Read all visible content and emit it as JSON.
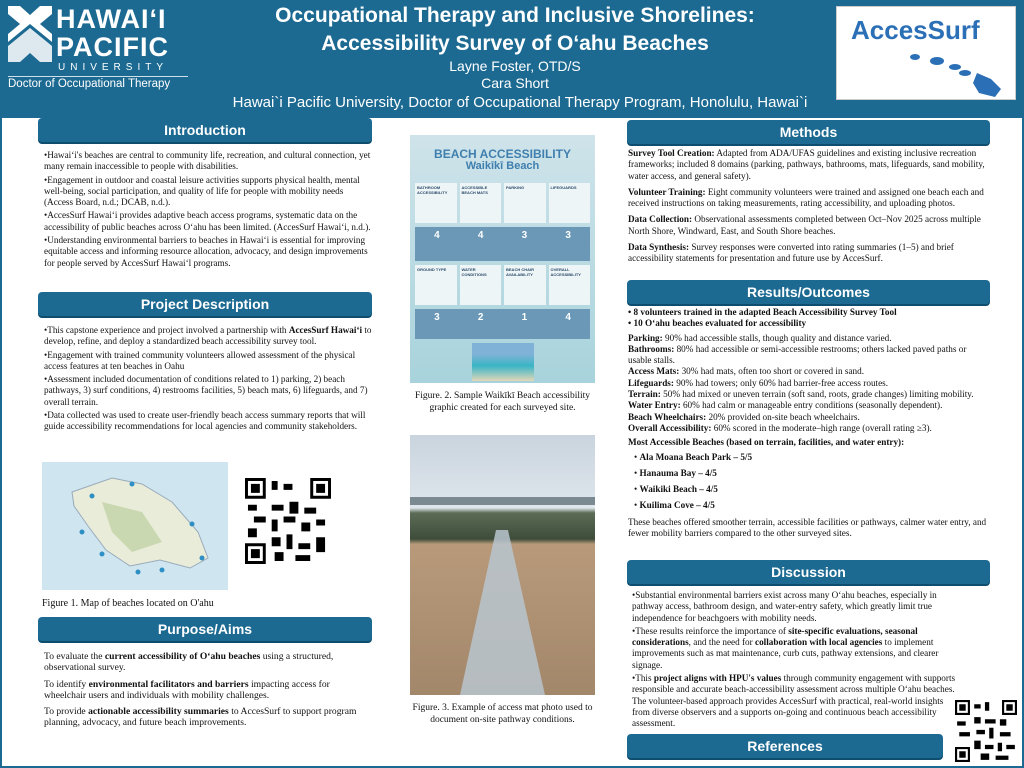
{
  "header": {
    "university": {
      "line1": "HAWAIʻI",
      "line2": "PACIFIC",
      "line3": "UNIVERSITY",
      "program": "Doctor of Occupational Therapy"
    },
    "title_line1": "Occupational Therapy and Inclusive Shorelines:",
    "title_line2": "Accessibility Survey of Oʻahu Beaches",
    "author1": "Layne Foster, OTD/S",
    "author2": "Cara Short",
    "affiliation": "Hawai`i Pacific University, Doctor of Occupational Therapy Program, Honolulu, Hawai`i",
    "partner_logo": "AccesSurf"
  },
  "colors": {
    "primary": "#1c6a92",
    "accent": "#2b6fb6"
  },
  "introduction": {
    "heading": "Introduction",
    "bullets": [
      "•Hawaiʻi's beaches are central to community life, recreation, and cultural connection, yet many remain inaccessible to people with disabilities.",
      "•Engagement in outdoor and coastal leisure activities supports physical health, mental well-being, social participation, and quality of life for people with mobility needs (Access Board, n.d.; DCAB, n.d.).",
      "•AccesSurf Hawaiʻi provides adaptive beach access programs, systematic data on the accessibility of public beaches across Oʻahu has been limited. (AccesSurf Hawaiʻi, n.d.).",
      "•Understanding environmental barriers to beaches in Hawaiʻi is essential for improving equitable access and informing resource allocation, advocacy, and design improvements for people served by AccesSurf Hawaiʻl programs."
    ]
  },
  "project": {
    "heading": "Project Description",
    "b1_pre": "•This capstone experience and project involved a partnership with ",
    "b1_bold": "AccesSurf Hawaiʻi",
    "b1_post": " to develop, refine, and deploy a standardized beach accessibility survey tool.",
    "b2": "•Engagement with trained community volunteers allowed assessment of the physical access features at ten beaches in Oahu",
    "b3": "•Assessment included documentation of conditions related to 1) parking, 2) beach pathways, 3) surf conditions, 4) restrooms facilities, 5) beach mats, 6) lifeguards, and 7) overall terrain.",
    "b4": "•Data collected was used to create user-friendly beach access summary reports that will guide accessibility recommendations for local agencies and community stakeholders.",
    "figure1_caption": "Figure 1. Map of beaches located on O'ahu"
  },
  "aims": {
    "heading": "Purpose/Aims",
    "items": [
      {
        "pre": "To evaluate the ",
        "bold": "current accessibility of Oʻahu beaches",
        "post": " using a structured, observational survey."
      },
      {
        "pre": "To identify ",
        "bold": "environmental facilitators and barriers",
        "post": " impacting access for wheelchair users and individuals with mobility challenges."
      },
      {
        "pre": "To provide ",
        "bold": "actionable accessibility summaries",
        "post": " to AccesSurf to support program planning, advocacy, and future beach improvements."
      }
    ]
  },
  "figures": {
    "infographic": {
      "title1": "BEACH ACCESSIBILITY",
      "title2": "Waikīkī Beach",
      "scores": [
        "4",
        "4",
        "3",
        "3",
        "3",
        "2",
        "1",
        "4"
      ],
      "labels": [
        "BATHROOM ACCESSIBILITY",
        "ACCESSIBLE BEACH MATS",
        "PARKING",
        "LIFEGUARDS",
        "GROUND TYPE",
        "WATER CONDITIONS",
        "BEACH CHAIR AVAILABILITY",
        "OVERALL ACCESSIBILITY"
      ]
    },
    "figure2_caption": "Figure. 2. Sample Waikīkī Beach accessibility graphic created for each surveyed site.",
    "figure3_caption": "Figure. 3. Example of access mat photo used to document on-site pathway conditions."
  },
  "methods": {
    "heading": "Methods",
    "items": [
      {
        "label": "Survey Tool Creation:",
        "text": " Adapted from ADA/UFAS guidelines and existing inclusive recreation frameworks; included 8 domains (parking, pathways, bathrooms, mats, lifeguards, sand mobility, water access, and general safety)."
      },
      {
        "label": "Volunteer Training:",
        "text": " Eight community volunteers were trained and assigned one beach each and received instructions on taking measurements, rating accessibility, and uploading photos."
      },
      {
        "label": "Data Collection:",
        "text": " Observational assessments completed between Oct–Nov 2025 across multiple North Shore, Windward, East, and South Shore beaches."
      },
      {
        "label": "Data Synthesis:",
        "text": " Survey responses were converted into rating summaries (1–5) and brief accessibility statements for presentation and future use by AccesSurf."
      }
    ]
  },
  "results": {
    "heading": "Results/Outcomes",
    "highlights": [
      "• 8 volunteers trained in the adapted Beach Accessibility Survey Tool",
      "• 10 Oʻahu beaches evaluated for accessibility"
    ],
    "items": [
      {
        "label": "Parking:",
        "text": " 90% had accessible stalls, though quality and distance varied."
      },
      {
        "label": "Bathrooms:",
        "text": " 80% had accessible or semi-accessible restrooms; others lacked paved paths or usable stalls."
      },
      {
        "label": "Access Mats:",
        "text": " 30% had mats, often too short or covered in sand."
      },
      {
        "label": "Lifeguards:",
        "text": " 90% had towers; only 60% had barrier-free access routes."
      },
      {
        "label": "Terrain:",
        "text": " 50% had mixed or uneven terrain (soft sand, roots, grade changes) limiting mobility."
      },
      {
        "label": "Water Entry:",
        "text": " 60% had calm or manageable entry conditions (seasonally dependent)."
      },
      {
        "label": "Beach Wheelchairs:",
        "text": " 20% provided on-site beach wheelchairs."
      },
      {
        "label": "Overall Accessibility:",
        "text": " 60% scored in the moderate–high range (overall rating ≥3)."
      }
    ],
    "top_heading": "Most Accessible Beaches (based on terrain, facilities, and water entry):",
    "top_beaches": [
      "Ala Moana Beach Park – 5/5",
      "Hanauma Bay – 4/5",
      "Waikiki Beach – 4/5",
      "Kuilima Cove – 4/5"
    ],
    "summary": "These beaches offered smoother terrain, accessible facilities or pathways, calmer water entry, and fewer mobility barriers compared to the other surveyed sites."
  },
  "discussion": {
    "heading": "Discussion",
    "b1": "•Substantial environmental barriers exist across many Oʻahu beaches, especially in pathway access, bathroom design, and water-entry safety, which greatly limit true independence for beachgoers with mobility needs.",
    "b2_a": "•These results reinforce the importance of ",
    "b2_b": "site-specific evaluations, seasonal considerations",
    "b2_c": ", and the need for ",
    "b2_d": "collaboration with local agencies",
    "b2_e": " to implement improvements such as mat maintenance, curb cuts, pathway extensions, and clearer signage.",
    "b3_a": "•This ",
    "b3_b": "project aligns with HPU's values",
    "b3_c": " through community engagement with supports responsible and accurate beach-accessibility assessment across multiple Oʻahu beaches. The volunteer-based approach provides AccesSurf with practical, real-world insights from diverse observers and a supports on-going and continuous beach accessibility assessment."
  },
  "references": {
    "heading": "References"
  }
}
